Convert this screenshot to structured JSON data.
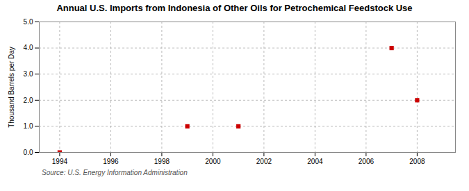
{
  "chart_data": {
    "type": "scatter",
    "title": "Annual U.S. Imports from Indonesia of Other Oils for Petrochemical Feedstock Use",
    "ylabel": "Thousand Barrels per Day",
    "source": "Source: U.S. Energy Information Administration",
    "x": [
      1994,
      1999,
      2001,
      2007,
      2008
    ],
    "values": [
      0.0,
      1.0,
      1.0,
      4.0,
      2.0
    ],
    "color": "#CC0000",
    "marker": "square",
    "xlim": [
      1993.2,
      2009.5
    ],
    "xticks": [
      1994,
      1996,
      1998,
      2000,
      2002,
      2004,
      2006,
      2008
    ],
    "ylim": [
      0.0,
      5.0
    ],
    "yticks": [
      {
        "value": 0.0,
        "label": "0.0"
      },
      {
        "value": 1.0,
        "label": "1.0"
      },
      {
        "value": 2.0,
        "label": "2.0"
      },
      {
        "value": 3.0,
        "label": "3.0"
      },
      {
        "value": 4.0,
        "label": "4.0"
      },
      {
        "value": 5.0,
        "label": "5.0"
      }
    ],
    "grid": true
  }
}
